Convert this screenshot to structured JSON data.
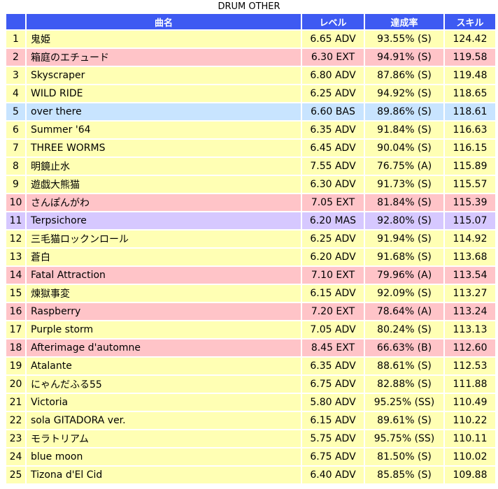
{
  "caption": "DRUM OTHER",
  "headers": {
    "no": "",
    "name": "曲名",
    "level": "レベル",
    "rate": "達成率",
    "skill": "スキル"
  },
  "row_colors": {
    "ADV": "#ffffb4",
    "EXT": "#ffc4c8",
    "BAS": "#c8e4ff",
    "MAS": "#d6c8ff",
    "header": "#3e5af2"
  },
  "rows": [
    {
      "no": "1",
      "name": "鬼姫",
      "level": "6.65 ADV",
      "diff": "ADV",
      "rate": "93.55% (S)",
      "skill": "124.42"
    },
    {
      "no": "2",
      "name": "箱庭のエチュード",
      "level": "6.30 EXT",
      "diff": "EXT",
      "rate": "94.91% (S)",
      "skill": "119.58"
    },
    {
      "no": "3",
      "name": "Skyscraper",
      "level": "6.80 ADV",
      "diff": "ADV",
      "rate": "87.86% (S)",
      "skill": "119.48"
    },
    {
      "no": "4",
      "name": "WILD RIDE",
      "level": "6.25 ADV",
      "diff": "ADV",
      "rate": "94.92% (S)",
      "skill": "118.65"
    },
    {
      "no": "5",
      "name": "over there",
      "level": "6.60 BAS",
      "diff": "BAS",
      "rate": "89.86% (S)",
      "skill": "118.61"
    },
    {
      "no": "6",
      "name": "Summer '64",
      "level": "6.35 ADV",
      "diff": "ADV",
      "rate": "91.84% (S)",
      "skill": "116.63"
    },
    {
      "no": "7",
      "name": "THREE WORMS",
      "level": "6.45 ADV",
      "diff": "ADV",
      "rate": "90.04% (S)",
      "skill": "116.15"
    },
    {
      "no": "8",
      "name": "明鏡止水",
      "level": "7.55 ADV",
      "diff": "ADV",
      "rate": "76.75% (A)",
      "skill": "115.89"
    },
    {
      "no": "9",
      "name": "遊戯大熊猫",
      "level": "6.30 ADV",
      "diff": "ADV",
      "rate": "91.73% (S)",
      "skill": "115.57"
    },
    {
      "no": "10",
      "name": "さんぽんがわ",
      "level": "7.05 EXT",
      "diff": "EXT",
      "rate": "81.84% (S)",
      "skill": "115.39"
    },
    {
      "no": "11",
      "name": "Terpsichore",
      "level": "6.20 MAS",
      "diff": "MAS",
      "rate": "92.80% (S)",
      "skill": "115.07"
    },
    {
      "no": "12",
      "name": "三毛猫ロックンロール",
      "level": "6.25 ADV",
      "diff": "ADV",
      "rate": "91.94% (S)",
      "skill": "114.92"
    },
    {
      "no": "13",
      "name": "蒼白",
      "level": "6.20 ADV",
      "diff": "ADV",
      "rate": "91.68% (S)",
      "skill": "113.68"
    },
    {
      "no": "14",
      "name": "Fatal Attraction",
      "level": "7.10 EXT",
      "diff": "EXT",
      "rate": "79.96% (A)",
      "skill": "113.54"
    },
    {
      "no": "15",
      "name": "煉獄事変",
      "level": "6.15 ADV",
      "diff": "ADV",
      "rate": "92.09% (S)",
      "skill": "113.27"
    },
    {
      "no": "16",
      "name": "Raspberry",
      "level": "7.20 EXT",
      "diff": "EXT",
      "rate": "78.64% (A)",
      "skill": "113.24"
    },
    {
      "no": "17",
      "name": "Purple storm",
      "level": "7.05 ADV",
      "diff": "ADV",
      "rate": "80.24% (S)",
      "skill": "113.13"
    },
    {
      "no": "18",
      "name": "Afterimage d'automne",
      "level": "8.45 EXT",
      "diff": "EXT",
      "rate": "66.63% (B)",
      "skill": "112.60"
    },
    {
      "no": "19",
      "name": "Atalante",
      "level": "6.35 ADV",
      "diff": "ADV",
      "rate": "88.61% (S)",
      "skill": "112.53"
    },
    {
      "no": "20",
      "name": "にゃんだふる55",
      "level": "6.75 ADV",
      "diff": "ADV",
      "rate": "82.88% (S)",
      "skill": "111.88"
    },
    {
      "no": "21",
      "name": "Victoria",
      "level": "5.80 ADV",
      "diff": "ADV",
      "rate": "95.25% (SS)",
      "skill": "110.49"
    },
    {
      "no": "22",
      "name": "sola GITADORA ver.",
      "level": "6.15 ADV",
      "diff": "ADV",
      "rate": "89.61% (S)",
      "skill": "110.22"
    },
    {
      "no": "23",
      "name": "モラトリアム",
      "level": "5.75 ADV",
      "diff": "ADV",
      "rate": "95.75% (SS)",
      "skill": "110.11"
    },
    {
      "no": "24",
      "name": "blue moon",
      "level": "6.75 ADV",
      "diff": "ADV",
      "rate": "81.50% (S)",
      "skill": "110.02"
    },
    {
      "no": "25",
      "name": "Tizona d'El Cid",
      "level": "6.40 ADV",
      "diff": "ADV",
      "rate": "85.85% (S)",
      "skill": "109.88"
    }
  ]
}
